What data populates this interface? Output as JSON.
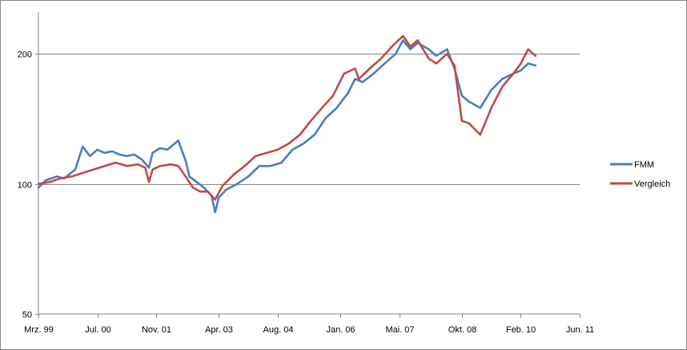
{
  "chart_data": {
    "type": "line",
    "title": "",
    "xlabel": "",
    "ylabel": "",
    "y_scale": "log",
    "ylim": [
      50,
      250
    ],
    "y_ticks": [
      {
        "value": 50,
        "label": "50"
      },
      {
        "value": 100,
        "label": "100"
      },
      {
        "value": 200,
        "label": "200"
      }
    ],
    "xlim": [
      "1999-03",
      "2011-06"
    ],
    "x_ticks": [
      {
        "value": "1999-03",
        "label": "Mrz. 99"
      },
      {
        "value": "2000-07",
        "label": "Jul. 00"
      },
      {
        "value": "2001-11",
        "label": "Nov. 01"
      },
      {
        "value": "2003-04",
        "label": "Apr. 03"
      },
      {
        "value": "2004-08",
        "label": "Aug. 04"
      },
      {
        "value": "2006-01",
        "label": "Jan. 06"
      },
      {
        "value": "2007-05",
        "label": "Mai. 07"
      },
      {
        "value": "2008-10",
        "label": "Okt. 08"
      },
      {
        "value": "2010-02",
        "label": "Feb. 10"
      },
      {
        "value": "2011-06",
        "label": "Jun. 11"
      }
    ],
    "grid": {
      "horizontal": true,
      "vertical": false
    },
    "legend_position": "right",
    "series": [
      {
        "name": "FMM",
        "color": "#4a7ebb",
        "points": [
          [
            "1999-03",
            98
          ],
          [
            "1999-05",
            102
          ],
          [
            "1999-08",
            104
          ],
          [
            "1999-10",
            103
          ],
          [
            "2000-01",
            108
          ],
          [
            "2000-03",
            122
          ],
          [
            "2000-05",
            116
          ],
          [
            "2000-07",
            120
          ],
          [
            "2000-09",
            118
          ],
          [
            "2000-11",
            119
          ],
          [
            "2001-01",
            117
          ],
          [
            "2001-03",
            116
          ],
          [
            "2001-05",
            117
          ],
          [
            "2001-07",
            114
          ],
          [
            "2001-09",
            109
          ],
          [
            "2001-10",
            118
          ],
          [
            "2001-12",
            121
          ],
          [
            "2002-02",
            120
          ],
          [
            "2002-04",
            124
          ],
          [
            "2002-05",
            126
          ],
          [
            "2002-07",
            113
          ],
          [
            "2002-08",
            104
          ],
          [
            "2002-10",
            101
          ],
          [
            "2002-12",
            98
          ],
          [
            "2003-02",
            94
          ],
          [
            "2003-03",
            86
          ],
          [
            "2003-04",
            93
          ],
          [
            "2003-06",
            97
          ],
          [
            "2003-09",
            100
          ],
          [
            "2003-12",
            104
          ],
          [
            "2004-03",
            110
          ],
          [
            "2004-06",
            110
          ],
          [
            "2004-09",
            112
          ],
          [
            "2004-12",
            120
          ],
          [
            "2005-03",
            124
          ],
          [
            "2005-06",
            130
          ],
          [
            "2005-09",
            142
          ],
          [
            "2005-12",
            150
          ],
          [
            "2006-03",
            162
          ],
          [
            "2006-05",
            175
          ],
          [
            "2006-07",
            172
          ],
          [
            "2006-10",
            180
          ],
          [
            "2007-01",
            190
          ],
          [
            "2007-04",
            200
          ],
          [
            "2007-06",
            215
          ],
          [
            "2007-08",
            205
          ],
          [
            "2007-10",
            212
          ],
          [
            "2008-01",
            205
          ],
          [
            "2008-03",
            198
          ],
          [
            "2008-06",
            205
          ],
          [
            "2008-08",
            185
          ],
          [
            "2008-10",
            160
          ],
          [
            "2008-12",
            155
          ],
          [
            "2009-03",
            150
          ],
          [
            "2009-06",
            165
          ],
          [
            "2009-09",
            175
          ],
          [
            "2009-12",
            180
          ],
          [
            "2010-02",
            183
          ],
          [
            "2010-04",
            190
          ],
          [
            "2010-06",
            188
          ]
        ]
      },
      {
        "name": "Vergleich",
        "color": "#be4b48",
        "points": [
          [
            "1999-03",
            100
          ],
          [
            "1999-06",
            101
          ],
          [
            "1999-09",
            103
          ],
          [
            "1999-12",
            104
          ],
          [
            "2000-03",
            106
          ],
          [
            "2000-06",
            108
          ],
          [
            "2000-09",
            110
          ],
          [
            "2000-12",
            112
          ],
          [
            "2001-03",
            110
          ],
          [
            "2001-06",
            111
          ],
          [
            "2001-08",
            109
          ],
          [
            "2001-09",
            101
          ],
          [
            "2001-10",
            108
          ],
          [
            "2001-12",
            110
          ],
          [
            "2002-03",
            111
          ],
          [
            "2002-05",
            110
          ],
          [
            "2002-07",
            104
          ],
          [
            "2002-09",
            98
          ],
          [
            "2002-11",
            96
          ],
          [
            "2003-01",
            96
          ],
          [
            "2003-03",
            92
          ],
          [
            "2003-05",
            99
          ],
          [
            "2003-08",
            105
          ],
          [
            "2003-11",
            110
          ],
          [
            "2004-02",
            116
          ],
          [
            "2004-05",
            118
          ],
          [
            "2004-08",
            120
          ],
          [
            "2004-11",
            124
          ],
          [
            "2005-02",
            130
          ],
          [
            "2005-05",
            140
          ],
          [
            "2005-08",
            150
          ],
          [
            "2005-11",
            160
          ],
          [
            "2006-02",
            180
          ],
          [
            "2006-05",
            185
          ],
          [
            "2006-06",
            175
          ],
          [
            "2006-09",
            185
          ],
          [
            "2006-12",
            195
          ],
          [
            "2007-03",
            208
          ],
          [
            "2007-06",
            220
          ],
          [
            "2007-08",
            208
          ],
          [
            "2007-10",
            215
          ],
          [
            "2008-01",
            195
          ],
          [
            "2008-03",
            190
          ],
          [
            "2008-06",
            200
          ],
          [
            "2008-08",
            188
          ],
          [
            "2008-10",
            140
          ],
          [
            "2008-12",
            138
          ],
          [
            "2009-03",
            130
          ],
          [
            "2009-06",
            150
          ],
          [
            "2009-09",
            168
          ],
          [
            "2009-12",
            180
          ],
          [
            "2010-02",
            190
          ],
          [
            "2010-04",
            205
          ],
          [
            "2010-06",
            198
          ]
        ]
      }
    ]
  }
}
